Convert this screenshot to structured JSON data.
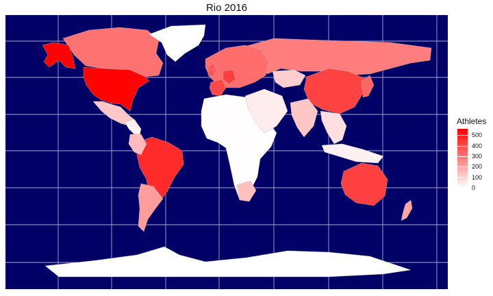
{
  "title": "Rio 2016",
  "legend": {
    "title": "Athletes",
    "ticks": [
      "500",
      "400",
      "300",
      "200",
      "100",
      "0"
    ],
    "tick_values": [
      500,
      400,
      300,
      200,
      100,
      0
    ],
    "max": 560,
    "color_low": "#ffffff",
    "color_high": "#ff0000"
  },
  "colors": {
    "ocean": "#000066",
    "graticule": "#c8c8e6",
    "border": "#b3b3b3"
  },
  "regions": [
    {
      "name": "Canada",
      "value": 310
    },
    {
      "name": "Alaska",
      "value": 555
    },
    {
      "name": "USA",
      "value": 555
    },
    {
      "name": "Greenland",
      "value": 0
    },
    {
      "name": "Mexico",
      "value": 120
    },
    {
      "name": "Central America",
      "value": 30
    },
    {
      "name": "Brazil",
      "value": 465
    },
    {
      "name": "Colombia",
      "value": 150
    },
    {
      "name": "Argentina",
      "value": 215
    },
    {
      "name": "Russia",
      "value": 285
    },
    {
      "name": "China",
      "value": 415
    },
    {
      "name": "Australia",
      "value": 420
    },
    {
      "name": "Africa",
      "value": 5
    },
    {
      "name": "South Africa",
      "value": 140
    },
    {
      "name": "India",
      "value": 125
    },
    {
      "name": "Europe",
      "value": 320
    },
    {
      "name": "France",
      "value": 400
    },
    {
      "name": "Germany",
      "value": 425
    },
    {
      "name": "UK",
      "value": 365
    },
    {
      "name": "Japan",
      "value": 335
    },
    {
      "name": "Kazakhstan",
      "value": 105
    },
    {
      "name": "Middle East",
      "value": 40
    },
    {
      "name": "Southeast Asia",
      "value": 70
    },
    {
      "name": "Indonesia",
      "value": 30
    },
    {
      "name": "New Zealand",
      "value": 200
    },
    {
      "name": "Antarctica",
      "value": 0
    }
  ]
}
